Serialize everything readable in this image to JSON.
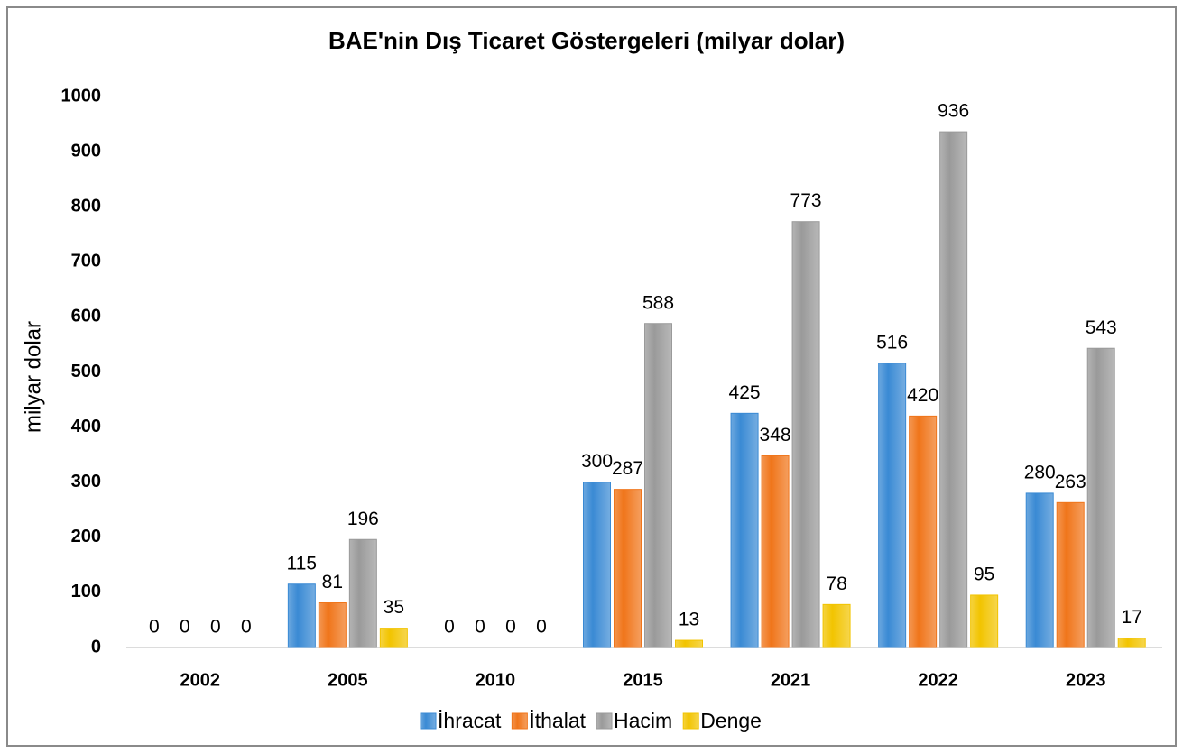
{
  "chart_data": {
    "type": "bar",
    "title": "BAE'nin Dış Ticaret Göstergeleri  (milyar dolar)",
    "y_label": "milyar dolar",
    "categories": [
      "2002",
      "2005",
      "2010",
      "2015",
      "2021",
      "2022",
      "2023"
    ],
    "series": [
      {
        "name": "İhracat",
        "color": "#3a8ad4",
        "values": [
          0,
          115,
          0,
          300,
          425,
          516,
          280
        ]
      },
      {
        "name": "İthalat",
        "color": "#f0751a",
        "values": [
          0,
          81,
          0,
          287,
          348,
          420,
          263
        ]
      },
      {
        "name": "Hacim",
        "color": "#9a9a9a",
        "values": [
          0,
          196,
          0,
          588,
          773,
          936,
          543
        ]
      },
      {
        "name": "Denge",
        "color": "#f2c400",
        "values": [
          0,
          35,
          0,
          13,
          78,
          95,
          17
        ]
      }
    ],
    "ylim": [
      0,
      1000
    ],
    "yticks": [
      0,
      100,
      200,
      300,
      400,
      500,
      600,
      700,
      800,
      900,
      1000
    ],
    "grid": false,
    "legend": "bottom"
  }
}
